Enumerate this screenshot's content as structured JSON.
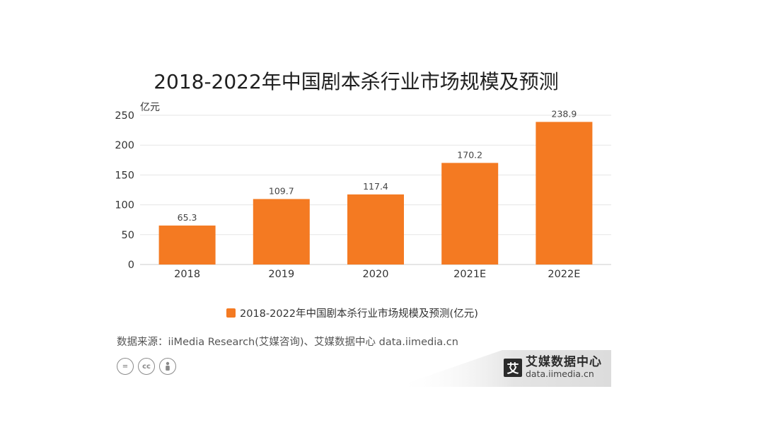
{
  "colors": {
    "bar": "#F47A22",
    "grid": "#e6e6e6",
    "axis": "#cccccc"
  },
  "chart_data": {
    "type": "bar",
    "title": "2018-2022年中国剧本杀行业市场规模及预测",
    "ylabel": "亿元",
    "xlabel": "",
    "categories": [
      "2018",
      "2019",
      "2020",
      "2021E",
      "2022E"
    ],
    "series": [
      {
        "name": "2018-2022年中国剧本杀行业市场规模及预测(亿元)",
        "values": [
          65.3,
          109.7,
          117.4,
          170.2,
          238.9
        ]
      }
    ],
    "value_labels": [
      "65.3",
      "109.7",
      "117.4",
      "170.2",
      "238.9"
    ],
    "yticks": [
      0,
      50,
      100,
      150,
      200,
      250
    ],
    "ylim": [
      0,
      250
    ],
    "grid": true,
    "legend_position": "bottom"
  },
  "footer": {
    "source": "数据来源：iiMedia Research(艾媒咨询)、艾媒数据中心 data.iimedia.cn",
    "cc_icons": [
      {
        "icon": "equals-icon",
        "glyph": "="
      },
      {
        "icon": "cc-icon",
        "glyph": "cc"
      },
      {
        "icon": "person-icon",
        "glyph": ""
      }
    ]
  },
  "brand": {
    "mark": "艾",
    "name": "艾媒数据中心",
    "url": "data.iimedia.cn"
  }
}
